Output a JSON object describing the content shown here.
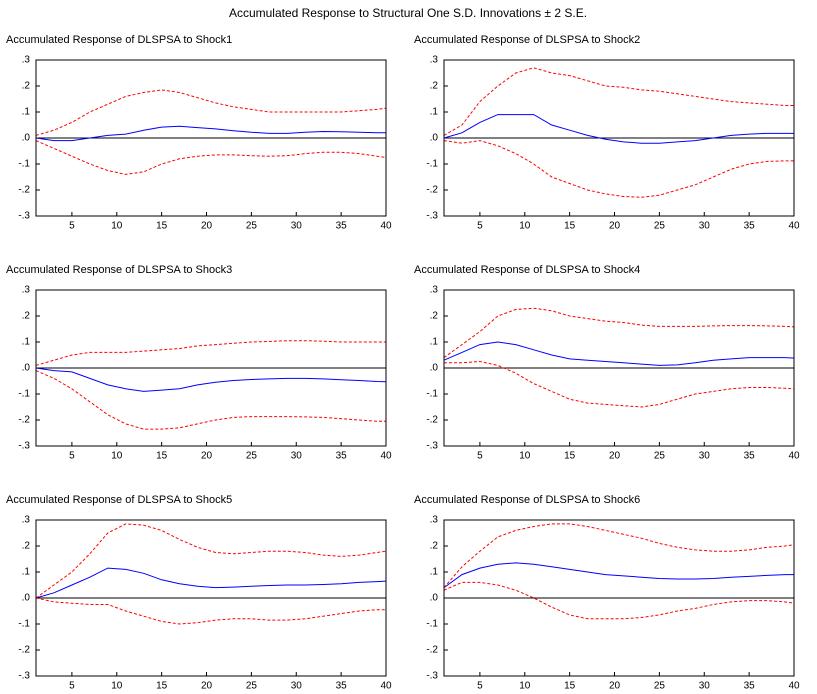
{
  "title": "Accumulated Response to Structural One S.D. Innovations ± 2 S.E.",
  "chart_data": [
    {
      "type": "line",
      "title": "Accumulated Response of DLSPSA to Shock1",
      "x": [
        1,
        3,
        5,
        7,
        9,
        11,
        13,
        15,
        17,
        19,
        21,
        23,
        25,
        27,
        29,
        31,
        33,
        35,
        37,
        39,
        40
      ],
      "xlim": [
        1,
        40
      ],
      "xticks": [
        5,
        10,
        15,
        20,
        25,
        30,
        35,
        40
      ],
      "ylim": [
        -0.3,
        0.3
      ],
      "yticks": [
        {
          "value": 0.3,
          "label": ".3"
        },
        {
          "value": 0.2,
          "label": ".2"
        },
        {
          "value": 0.1,
          "label": ".1"
        },
        {
          "value": 0,
          "label": ".0"
        },
        {
          "value": -0.1,
          "label": "-.1"
        },
        {
          "value": -0.2,
          "label": "-.2"
        },
        {
          "value": -0.3,
          "label": "-.3"
        }
      ],
      "zero_line": true,
      "series": [
        {
          "color": "#0000ff",
          "dashed": false,
          "values": [
            0,
            -0.01,
            -0.01,
            0,
            0.01,
            0.015,
            0.03,
            0.042,
            0.045,
            0.04,
            0.035,
            0.028,
            0.022,
            0.018,
            0.018,
            0.022,
            0.025,
            0.024,
            0.022,
            0.02,
            0.02
          ]
        },
        {
          "color": "#ff0000",
          "dashed": true,
          "values": [
            0.01,
            0.03,
            0.06,
            0.1,
            0.13,
            0.16,
            0.175,
            0.185,
            0.175,
            0.155,
            0.135,
            0.12,
            0.11,
            0.1,
            0.1,
            0.1,
            0.1,
            0.1,
            0.105,
            0.11,
            0.115
          ]
        },
        {
          "color": "#ff0000",
          "dashed": true,
          "values": [
            -0.01,
            -0.04,
            -0.07,
            -0.1,
            -0.125,
            -0.14,
            -0.13,
            -0.1,
            -0.08,
            -0.07,
            -0.065,
            -0.065,
            -0.068,
            -0.07,
            -0.068,
            -0.06,
            -0.055,
            -0.055,
            -0.06,
            -0.07,
            -0.075
          ]
        }
      ]
    },
    {
      "type": "line",
      "title": "Accumulated Response of DLSPSA to Shock2",
      "x": [
        1,
        3,
        5,
        7,
        9,
        11,
        13,
        15,
        17,
        19,
        21,
        23,
        25,
        27,
        29,
        31,
        33,
        35,
        37,
        39,
        40
      ],
      "xlim": [
        1,
        40
      ],
      "xticks": [
        5,
        10,
        15,
        20,
        25,
        30,
        35,
        40
      ],
      "ylim": [
        -0.3,
        0.3
      ],
      "yticks": [
        {
          "value": 0.3,
          "label": ".3"
        },
        {
          "value": 0.2,
          "label": ".2"
        },
        {
          "value": 0.1,
          "label": ".1"
        },
        {
          "value": 0,
          "label": ".0"
        },
        {
          "value": -0.1,
          "label": "-.1"
        },
        {
          "value": -0.2,
          "label": "-.2"
        },
        {
          "value": -0.3,
          "label": "-.3"
        }
      ],
      "zero_line": true,
      "series": [
        {
          "color": "#0000ff",
          "dashed": false,
          "values": [
            0,
            0.02,
            0.06,
            0.09,
            0.09,
            0.09,
            0.05,
            0.03,
            0.01,
            -0.005,
            -0.015,
            -0.02,
            -0.02,
            -0.015,
            -0.01,
            0,
            0.01,
            0.015,
            0.018,
            0.018,
            0.018
          ]
        },
        {
          "color": "#ff0000",
          "dashed": true,
          "values": [
            0.01,
            0.05,
            0.14,
            0.2,
            0.25,
            0.27,
            0.25,
            0.24,
            0.22,
            0.2,
            0.195,
            0.185,
            0.18,
            0.17,
            0.16,
            0.15,
            0.14,
            0.135,
            0.13,
            0.125,
            0.125
          ]
        },
        {
          "color": "#ff0000",
          "dashed": true,
          "values": [
            -0.01,
            -0.02,
            -0.01,
            -0.03,
            -0.06,
            -0.1,
            -0.15,
            -0.175,
            -0.2,
            -0.215,
            -0.225,
            -0.228,
            -0.22,
            -0.2,
            -0.18,
            -0.15,
            -0.12,
            -0.1,
            -0.09,
            -0.088,
            -0.088
          ]
        }
      ]
    },
    {
      "type": "line",
      "title": "Accumulated Response of DLSPSA to Shock3",
      "x": [
        1,
        3,
        5,
        7,
        9,
        11,
        13,
        15,
        17,
        19,
        21,
        23,
        25,
        27,
        29,
        31,
        33,
        35,
        37,
        39,
        40
      ],
      "xlim": [
        1,
        40
      ],
      "xticks": [
        5,
        10,
        15,
        20,
        25,
        30,
        35,
        40
      ],
      "ylim": [
        -0.3,
        0.3
      ],
      "yticks": [
        {
          "value": 0.3,
          "label": ".3"
        },
        {
          "value": 0.2,
          "label": ".2"
        },
        {
          "value": 0.1,
          "label": ".1"
        },
        {
          "value": 0,
          "label": ".0"
        },
        {
          "value": -0.1,
          "label": "-.1"
        },
        {
          "value": -0.2,
          "label": "-.2"
        },
        {
          "value": -0.3,
          "label": "-.3"
        }
      ],
      "zero_line": true,
      "series": [
        {
          "color": "#0000ff",
          "dashed": false,
          "values": [
            0,
            -0.01,
            -0.015,
            -0.04,
            -0.065,
            -0.08,
            -0.09,
            -0.085,
            -0.08,
            -0.065,
            -0.055,
            -0.048,
            -0.044,
            -0.042,
            -0.04,
            -0.04,
            -0.042,
            -0.045,
            -0.048,
            -0.052,
            -0.053
          ]
        },
        {
          "color": "#ff0000",
          "dashed": true,
          "values": [
            0.01,
            0.03,
            0.05,
            0.06,
            0.06,
            0.06,
            0.065,
            0.07,
            0.075,
            0.085,
            0.09,
            0.095,
            0.1,
            0.102,
            0.105,
            0.105,
            0.103,
            0.1,
            0.1,
            0.1,
            0.1
          ]
        },
        {
          "color": "#ff0000",
          "dashed": true,
          "values": [
            -0.01,
            -0.04,
            -0.08,
            -0.13,
            -0.18,
            -0.215,
            -0.235,
            -0.235,
            -0.23,
            -0.215,
            -0.2,
            -0.19,
            -0.187,
            -0.187,
            -0.187,
            -0.188,
            -0.19,
            -0.195,
            -0.2,
            -0.205,
            -0.205
          ]
        }
      ]
    },
    {
      "type": "line",
      "title": "Accumulated Response of DLSPSA to Shock4",
      "x": [
        1,
        3,
        5,
        7,
        9,
        11,
        13,
        15,
        17,
        19,
        21,
        23,
        25,
        27,
        29,
        31,
        33,
        35,
        37,
        39,
        40
      ],
      "xlim": [
        1,
        40
      ],
      "xticks": [
        5,
        10,
        15,
        20,
        25,
        30,
        35,
        40
      ],
      "ylim": [
        -0.3,
        0.3
      ],
      "yticks": [
        {
          "value": 0.3,
          "label": ".3"
        },
        {
          "value": 0.2,
          "label": ".2"
        },
        {
          "value": 0.1,
          "label": ".1"
        },
        {
          "value": 0,
          "label": ".0"
        },
        {
          "value": -0.1,
          "label": "-.1"
        },
        {
          "value": -0.2,
          "label": "-.2"
        },
        {
          "value": -0.3,
          "label": "-.3"
        }
      ],
      "zero_line": true,
      "series": [
        {
          "color": "#0000ff",
          "dashed": false,
          "values": [
            0.03,
            0.06,
            0.09,
            0.1,
            0.09,
            0.07,
            0.05,
            0.035,
            0.03,
            0.025,
            0.02,
            0.015,
            0.01,
            0.012,
            0.02,
            0.03,
            0.035,
            0.04,
            0.04,
            0.04,
            0.038
          ]
        },
        {
          "color": "#ff0000",
          "dashed": true,
          "values": [
            0.04,
            0.09,
            0.14,
            0.2,
            0.225,
            0.23,
            0.22,
            0.2,
            0.19,
            0.18,
            0.175,
            0.165,
            0.16,
            0.16,
            0.16,
            0.162,
            0.163,
            0.163,
            0.162,
            0.16,
            0.158
          ]
        },
        {
          "color": "#ff0000",
          "dashed": true,
          "values": [
            0.02,
            0.02,
            0.025,
            0.01,
            -0.02,
            -0.06,
            -0.09,
            -0.12,
            -0.135,
            -0.14,
            -0.145,
            -0.15,
            -0.14,
            -0.12,
            -0.1,
            -0.09,
            -0.08,
            -0.075,
            -0.075,
            -0.078,
            -0.08
          ]
        }
      ]
    },
    {
      "type": "line",
      "title": "Accumulated Response of DLSPSA to Shock5",
      "x": [
        1,
        3,
        5,
        7,
        9,
        11,
        13,
        15,
        17,
        19,
        21,
        23,
        25,
        27,
        29,
        31,
        33,
        35,
        37,
        39,
        40
      ],
      "xlim": [
        1,
        40
      ],
      "xticks": [
        5,
        10,
        15,
        20,
        25,
        30,
        35,
        40
      ],
      "ylim": [
        -0.3,
        0.3
      ],
      "yticks": [
        {
          "value": 0.3,
          "label": ".3"
        },
        {
          "value": 0.2,
          "label": ".2"
        },
        {
          "value": 0.1,
          "label": ".1"
        },
        {
          "value": 0,
          "label": ".0"
        },
        {
          "value": -0.1,
          "label": "-.1"
        },
        {
          "value": -0.2,
          "label": "-.2"
        },
        {
          "value": -0.3,
          "label": "-.3"
        }
      ],
      "zero_line": true,
      "series": [
        {
          "color": "#0000ff",
          "dashed": false,
          "values": [
            0,
            0.02,
            0.05,
            0.08,
            0.115,
            0.11,
            0.095,
            0.07,
            0.055,
            0.045,
            0.04,
            0.042,
            0.045,
            0.048,
            0.05,
            0.05,
            0.052,
            0.055,
            0.06,
            0.063,
            0.065
          ]
        },
        {
          "color": "#ff0000",
          "dashed": true,
          "values": [
            0,
            0.05,
            0.1,
            0.17,
            0.25,
            0.285,
            0.28,
            0.26,
            0.225,
            0.195,
            0.175,
            0.17,
            0.175,
            0.18,
            0.18,
            0.175,
            0.165,
            0.16,
            0.165,
            0.175,
            0.18
          ]
        },
        {
          "color": "#ff0000",
          "dashed": true,
          "values": [
            0,
            -0.015,
            -0.02,
            -0.025,
            -0.025,
            -0.05,
            -0.07,
            -0.09,
            -0.1,
            -0.095,
            -0.085,
            -0.08,
            -0.08,
            -0.085,
            -0.085,
            -0.08,
            -0.07,
            -0.06,
            -0.05,
            -0.045,
            -0.045
          ]
        }
      ]
    },
    {
      "type": "line",
      "title": "Accumulated Response of DLSPSA to Shock6",
      "x": [
        1,
        3,
        5,
        7,
        9,
        11,
        13,
        15,
        17,
        19,
        21,
        23,
        25,
        27,
        29,
        31,
        33,
        35,
        37,
        39,
        40
      ],
      "xlim": [
        1,
        40
      ],
      "xticks": [
        5,
        10,
        15,
        20,
        25,
        30,
        35,
        40
      ],
      "ylim": [
        -0.3,
        0.3
      ],
      "yticks": [
        {
          "value": 0.3,
          "label": ".3"
        },
        {
          "value": 0.2,
          "label": ".2"
        },
        {
          "value": 0.1,
          "label": ".1"
        },
        {
          "value": 0,
          "label": ".0"
        },
        {
          "value": -0.1,
          "label": "-.1"
        },
        {
          "value": -0.2,
          "label": "-.2"
        },
        {
          "value": -0.3,
          "label": "-.3"
        }
      ],
      "zero_line": true,
      "series": [
        {
          "color": "#0000ff",
          "dashed": false,
          "values": [
            0.04,
            0.09,
            0.115,
            0.13,
            0.135,
            0.13,
            0.12,
            0.11,
            0.1,
            0.09,
            0.085,
            0.08,
            0.075,
            0.073,
            0.073,
            0.075,
            0.08,
            0.083,
            0.087,
            0.09,
            0.09
          ]
        },
        {
          "color": "#ff0000",
          "dashed": true,
          "values": [
            0.04,
            0.12,
            0.18,
            0.235,
            0.26,
            0.275,
            0.285,
            0.285,
            0.275,
            0.26,
            0.245,
            0.23,
            0.21,
            0.195,
            0.185,
            0.18,
            0.18,
            0.185,
            0.195,
            0.2,
            0.205
          ]
        },
        {
          "color": "#ff0000",
          "dashed": true,
          "values": [
            0.03,
            0.06,
            0.06,
            0.05,
            0.03,
            0,
            -0.035,
            -0.065,
            -0.08,
            -0.08,
            -0.08,
            -0.075,
            -0.065,
            -0.05,
            -0.04,
            -0.025,
            -0.015,
            -0.01,
            -0.01,
            -0.015,
            -0.02
          ]
        }
      ]
    }
  ]
}
